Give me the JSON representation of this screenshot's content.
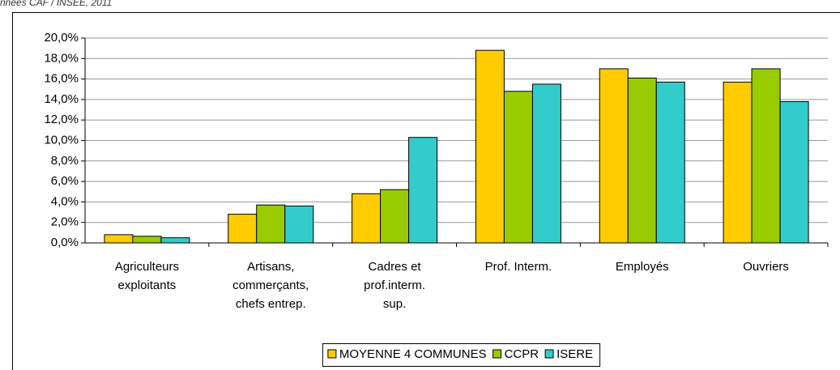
{
  "source": "nnées CAF / INSEE, 2011",
  "chart_data": {
    "type": "bar",
    "categories": [
      [
        "Agriculteurs",
        "exploitants"
      ],
      [
        "Artisans,",
        "commerçants,",
        "chefs entrep."
      ],
      [
        "Cadres et",
        "prof.interm.",
        "sup."
      ],
      [
        "Prof. Interm."
      ],
      [
        "Employés"
      ],
      [
        "Ouvriers"
      ]
    ],
    "series": [
      {
        "name": "MOYENNE 4 COMMUNES",
        "color": "#ffcc00",
        "values": [
          0.8,
          2.8,
          4.8,
          18.8,
          17.0,
          15.7
        ]
      },
      {
        "name": "CCPR",
        "color": "#99cc00",
        "values": [
          0.65,
          3.7,
          5.2,
          14.8,
          16.1,
          17.0
        ]
      },
      {
        "name": "ISERE",
        "color": "#33cccc",
        "values": [
          0.5,
          3.6,
          10.3,
          15.5,
          15.7,
          13.8
        ]
      }
    ],
    "ylim": [
      0,
      20
    ],
    "yticks": [
      {
        "value": 0,
        "label": "0,0%"
      },
      {
        "value": 2,
        "label": "2,0%"
      },
      {
        "value": 4,
        "label": "4,0%"
      },
      {
        "value": 6,
        "label": "6,0%"
      },
      {
        "value": 8,
        "label": "8,0%"
      },
      {
        "value": 10,
        "label": "10,0%"
      },
      {
        "value": 12,
        "label": "12,0%"
      },
      {
        "value": 14,
        "label": "14,0%"
      },
      {
        "value": 16,
        "label": "16,0%"
      },
      {
        "value": 18,
        "label": "18,0%"
      },
      {
        "value": 20,
        "label": "20,0%"
      }
    ],
    "grid": true,
    "legend": "bottom"
  }
}
